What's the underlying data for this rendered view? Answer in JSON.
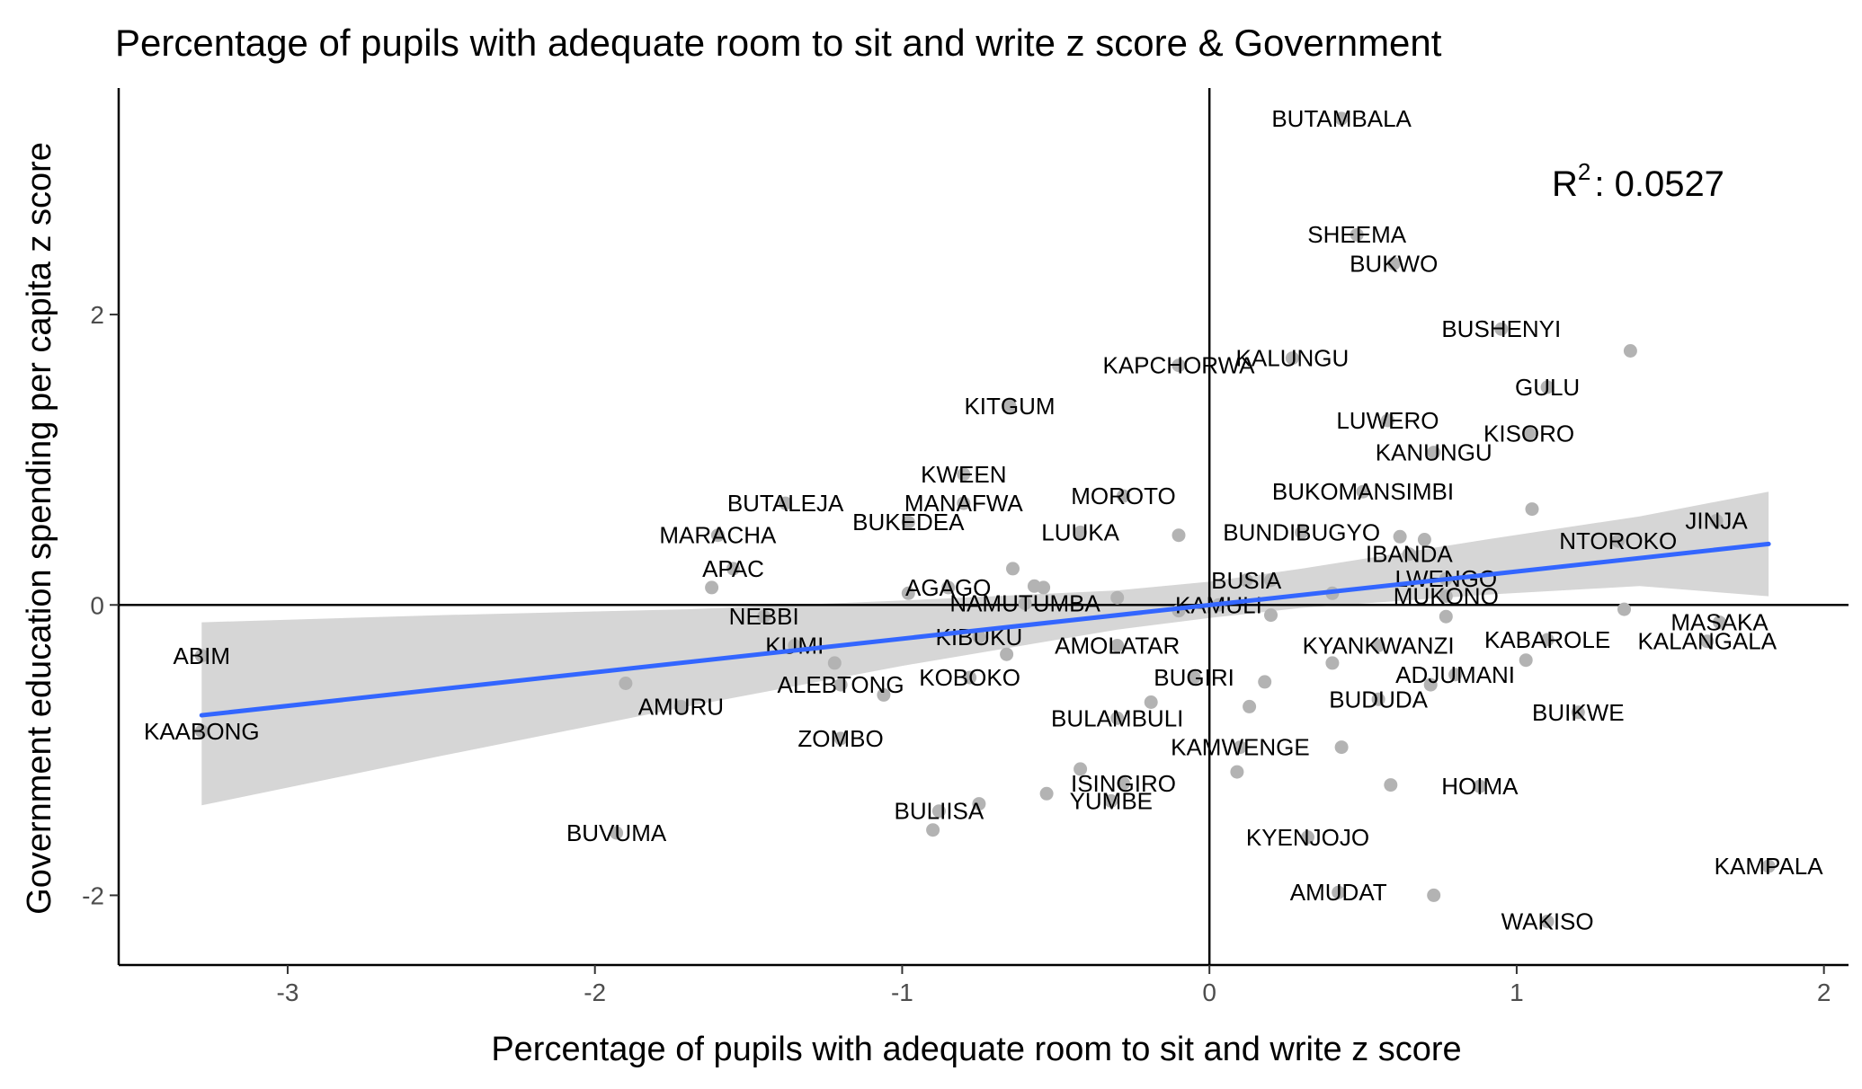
{
  "chart_data": {
    "type": "scatter",
    "title": "Percentage of pupils with adequate room to sit and write z score & Government",
    "xlabel": "Percentage of pupils with adequate room to sit and write z score",
    "ylabel": "Government education spending per capita z score",
    "xlim": [
      -3.55,
      2.08
    ],
    "ylim": [
      -2.48,
      3.56
    ],
    "x_ticks": [
      -3,
      -2,
      -1,
      0,
      1,
      2
    ],
    "y_ticks": [
      -2,
      0,
      2
    ],
    "x_tick_labels": [
      "-3",
      "-2",
      "-1",
      "0",
      "1",
      "2"
    ],
    "y_tick_labels": [
      "-2",
      "0",
      "2"
    ],
    "grid": false,
    "reference_lines": {
      "x": 0,
      "y": 0
    },
    "annotation": {
      "r_text": "R",
      "sup": "2",
      "value_text": ": 0.0527"
    },
    "colors": {
      "points": "#b3b3b3",
      "trend": "#3366ff",
      "band": "#d6d6d6",
      "axis": "#000000",
      "tick_text": "#4d4d4d"
    },
    "trend": {
      "x": [
        -3.28,
        1.82
      ],
      "y": [
        -0.76,
        0.42
      ]
    },
    "band": {
      "x": [
        -3.28,
        -2.5,
        -1.7,
        -1.0,
        -0.3,
        0.0,
        0.3,
        0.9,
        1.4,
        1.82
      ],
      "upper": [
        -0.12,
        -0.07,
        -0.03,
        0.03,
        0.1,
        0.16,
        0.25,
        0.45,
        0.61,
        0.78
      ],
      "lower": [
        -1.38,
        -1.04,
        -0.7,
        -0.42,
        -0.17,
        -0.09,
        -0.02,
        0.07,
        0.13,
        0.06
      ]
    },
    "points": [
      {
        "label": "BUTAMBALA",
        "x": 0.43,
        "y": 3.35
      },
      {
        "label": "SHEEMA",
        "x": 0.48,
        "y": 2.55
      },
      {
        "label": "BUKWO",
        "x": 0.6,
        "y": 2.35
      },
      {
        "label": "BUSHENYI",
        "x": 0.95,
        "y": 1.9
      },
      {
        "label": "",
        "x": 1.37,
        "y": 1.75
      },
      {
        "label": "KALUNGU",
        "x": 0.27,
        "y": 1.7
      },
      {
        "label": "KAPCHORWA",
        "x": -0.1,
        "y": 1.65
      },
      {
        "label": "GULU",
        "x": 1.1,
        "y": 1.5
      },
      {
        "label": "KITGUM",
        "x": -0.65,
        "y": 1.37
      },
      {
        "label": "LUWERO",
        "x": 0.58,
        "y": 1.27
      },
      {
        "label": "KISORO",
        "x": 1.04,
        "y": 1.18
      },
      {
        "label": "KANUNGU",
        "x": 0.73,
        "y": 1.05
      },
      {
        "label": "KWEEN",
        "x": -0.8,
        "y": 0.9
      },
      {
        "label": "BUKOMANSIMBI",
        "x": 0.5,
        "y": 0.78
      },
      {
        "label": "MOROTO",
        "x": -0.28,
        "y": 0.75
      },
      {
        "label": "BUTALEJA",
        "x": -1.38,
        "y": 0.7
      },
      {
        "label": "MANAFWA",
        "x": -0.8,
        "y": 0.7
      },
      {
        "label": "",
        "x": 1.05,
        "y": 0.66
      },
      {
        "label": "JINJA",
        "x": 1.65,
        "y": 0.58
      },
      {
        "label": "BUKEDEA",
        "x": -0.98,
        "y": 0.57
      },
      {
        "label": "NTOROKO",
        "x": 1.33,
        "y": 0.44
      },
      {
        "label": "BUNDIBUGYO",
        "x": 0.3,
        "y": 0.5
      },
      {
        "label": "",
        "x": -0.1,
        "y": 0.48
      },
      {
        "label": "",
        "x": 0.62,
        "y": 0.47
      },
      {
        "label": "",
        "x": 0.7,
        "y": 0.45
      },
      {
        "label": "LUUKA",
        "x": -0.42,
        "y": 0.5
      },
      {
        "label": "MARACHA",
        "x": -1.6,
        "y": 0.48
      },
      {
        "label": "IBANDA",
        "x": 0.65,
        "y": 0.35
      },
      {
        "label": "APAC",
        "x": -1.55,
        "y": 0.25
      },
      {
        "label": "",
        "x": -0.64,
        "y": 0.25
      },
      {
        "label": "",
        "x": -1.62,
        "y": 0.12
      },
      {
        "label": "LWENGO",
        "x": 0.77,
        "y": 0.18
      },
      {
        "label": "BUSIA",
        "x": 0.12,
        "y": 0.17
      },
      {
        "label": "",
        "x": 0.2,
        "y": 0.17
      },
      {
        "label": "AGAGO",
        "x": -0.85,
        "y": 0.12
      },
      {
        "label": "",
        "x": -0.57,
        "y": 0.13
      },
      {
        "label": "",
        "x": -0.54,
        "y": 0.12
      },
      {
        "label": "",
        "x": -0.98,
        "y": 0.08
      },
      {
        "label": "",
        "x": 0.4,
        "y": 0.08
      },
      {
        "label": "MUKONO",
        "x": 0.77,
        "y": 0.06
      },
      {
        "label": "",
        "x": -0.3,
        "y": 0.05
      },
      {
        "label": "NAMUTUMBA",
        "x": -0.6,
        "y": 0.01
      },
      {
        "label": "KAMULI",
        "x": 0.03,
        "y": 0.0
      },
      {
        "label": "",
        "x": -0.1,
        "y": -0.04
      },
      {
        "label": "",
        "x": 1.35,
        "y": -0.03
      },
      {
        "label": "",
        "x": 0.2,
        "y": -0.07
      },
      {
        "label": "",
        "x": 0.77,
        "y": -0.08
      },
      {
        "label": "NEBBI",
        "x": -1.45,
        "y": -0.08
      },
      {
        "label": "MASAKA",
        "x": 1.66,
        "y": -0.12
      },
      {
        "label": "KIBUKU",
        "x": -0.75,
        "y": -0.22
      },
      {
        "label": "KABAROLE",
        "x": 1.1,
        "y": -0.24
      },
      {
        "label": "KALANGALA",
        "x": 1.62,
        "y": -0.25
      },
      {
        "label": "KUMI",
        "x": -1.35,
        "y": -0.28
      },
      {
        "label": "AMOLATAR",
        "x": -0.3,
        "y": -0.28
      },
      {
        "label": "KYANKWANZI",
        "x": 0.55,
        "y": -0.28
      },
      {
        "label": "",
        "x": -0.66,
        "y": -0.34
      },
      {
        "label": "ABIM",
        "x": -3.28,
        "y": -0.35
      },
      {
        "label": "",
        "x": -1.22,
        "y": -0.4
      },
      {
        "label": "",
        "x": 1.03,
        "y": -0.38
      },
      {
        "label": "",
        "x": 0.4,
        "y": -0.4
      },
      {
        "label": "ADJUMANI",
        "x": 0.8,
        "y": -0.48
      },
      {
        "label": "BUGIRI",
        "x": -0.05,
        "y": -0.5
      },
      {
        "label": "KOBOKO",
        "x": -0.78,
        "y": -0.5
      },
      {
        "label": "",
        "x": 0.18,
        "y": -0.53
      },
      {
        "label": "",
        "x": -1.9,
        "y": -0.54
      },
      {
        "label": "ALEBTONG",
        "x": -1.2,
        "y": -0.55
      },
      {
        "label": "",
        "x": 0.72,
        "y": -0.55
      },
      {
        "label": "",
        "x": -1.06,
        "y": -0.62
      },
      {
        "label": "BUDUDA",
        "x": 0.55,
        "y": -0.65
      },
      {
        "label": "",
        "x": -0.19,
        "y": -0.67
      },
      {
        "label": "AMURU",
        "x": -1.72,
        "y": -0.7
      },
      {
        "label": "",
        "x": 0.13,
        "y": -0.7
      },
      {
        "label": "BUIKWE",
        "x": 1.2,
        "y": -0.74
      },
      {
        "label": "BULAMBULI",
        "x": -0.3,
        "y": -0.78
      },
      {
        "label": "KAABONG",
        "x": -3.28,
        "y": -0.87
      },
      {
        "label": "ZOMBO",
        "x": -1.2,
        "y": -0.92
      },
      {
        "label": "KAMWENGE",
        "x": 0.1,
        "y": -0.98
      },
      {
        "label": "",
        "x": 0.43,
        "y": -0.98
      },
      {
        "label": "",
        "x": -0.42,
        "y": -1.13
      },
      {
        "label": "",
        "x": 0.09,
        "y": -1.15
      },
      {
        "label": "ISINGIRO",
        "x": -0.28,
        "y": -1.23
      },
      {
        "label": "",
        "x": 0.59,
        "y": -1.24
      },
      {
        "label": "HOIMA",
        "x": 0.88,
        "y": -1.25
      },
      {
        "label": "",
        "x": -0.53,
        "y": -1.3
      },
      {
        "label": "YUMBE",
        "x": -0.32,
        "y": -1.35
      },
      {
        "label": "",
        "x": -0.75,
        "y": -1.37
      },
      {
        "label": "BULIISA",
        "x": -0.88,
        "y": -1.42
      },
      {
        "label": "",
        "x": -0.9,
        "y": -1.55
      },
      {
        "label": "BUVUMA",
        "x": -1.93,
        "y": -1.57
      },
      {
        "label": "KYENJOJO",
        "x": 0.32,
        "y": -1.6
      },
      {
        "label": "KAMPALA",
        "x": 1.82,
        "y": -1.8
      },
      {
        "label": "AMUDAT",
        "x": 0.42,
        "y": -1.98
      },
      {
        "label": "",
        "x": 0.73,
        "y": -2.0
      },
      {
        "label": "WAKISO",
        "x": 1.1,
        "y": -2.18
      }
    ]
  }
}
